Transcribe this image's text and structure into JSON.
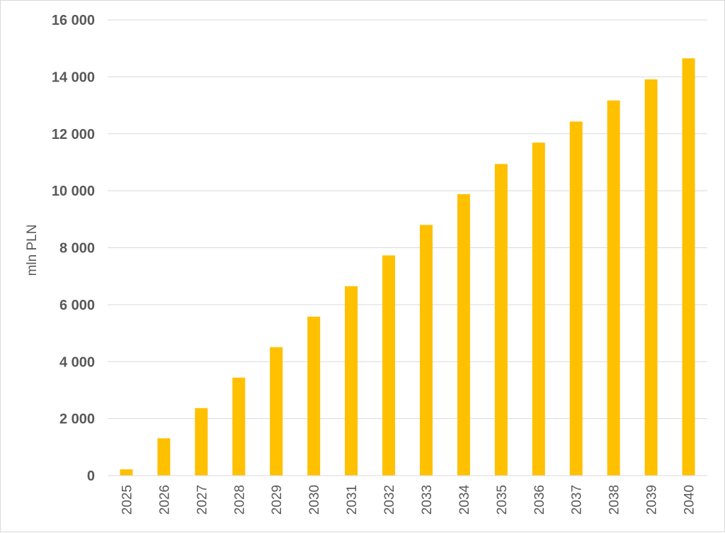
{
  "chart_data": {
    "type": "bar",
    "title": "",
    "xlabel": "",
    "ylabel": "mln PLN",
    "categories": [
      "2025",
      "2026",
      "2027",
      "2028",
      "2029",
      "2030",
      "2031",
      "2032",
      "2033",
      "2034",
      "2035",
      "2036",
      "2037",
      "2038",
      "2039",
      "2040"
    ],
    "values": [
      220,
      1310,
      2370,
      3440,
      4510,
      5580,
      6650,
      7730,
      8800,
      9880,
      10940,
      11690,
      12430,
      13170,
      13910,
      14650
    ],
    "ylim": [
      0,
      16000
    ],
    "yticks": [
      0,
      2000,
      4000,
      6000,
      8000,
      10000,
      12000,
      14000,
      16000
    ],
    "ytick_labels": [
      "0",
      "2 000",
      "4 000",
      "6 000",
      "8 000",
      "10 000",
      "12 000",
      "14 000",
      "16 000"
    ],
    "grid": true,
    "legend": "none",
    "colors": {
      "bar": "#FFC000",
      "grid": "#D9D9D9",
      "text": "#595959"
    }
  }
}
